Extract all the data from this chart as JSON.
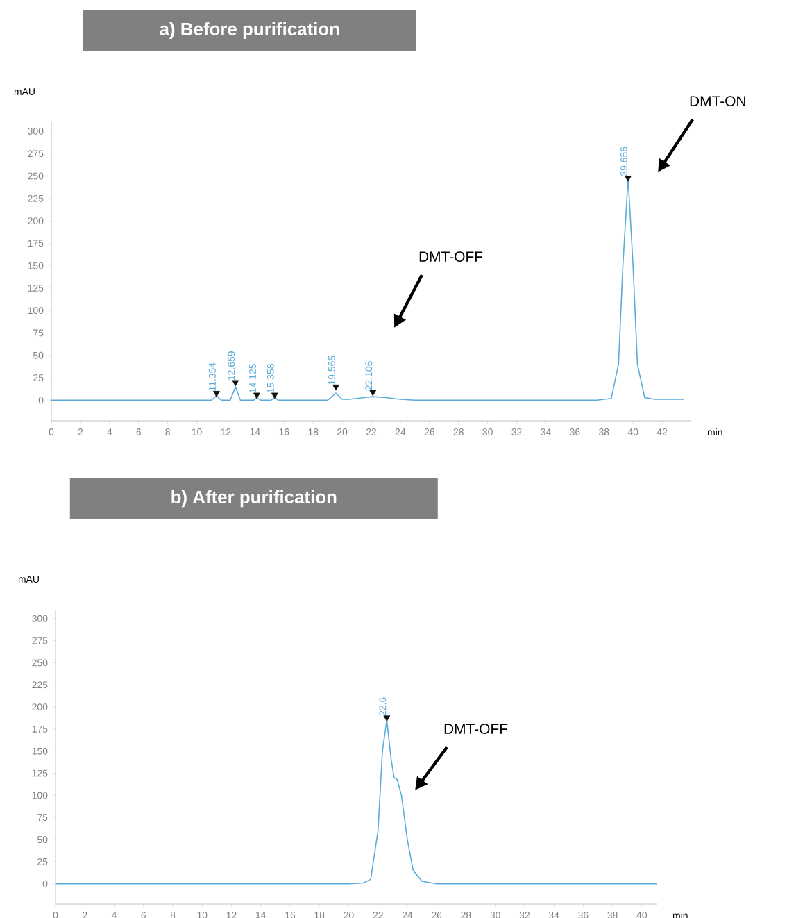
{
  "chart_data": [
    {
      "type": "line",
      "title": "a)  Before purification",
      "xlabel": "min",
      "ylabel": "mAU",
      "xlim": [
        0,
        44
      ],
      "ylim": [
        -23,
        310
      ],
      "xticks": [
        0,
        2,
        4,
        6,
        8,
        10,
        12,
        14,
        16,
        18,
        20,
        22,
        24,
        26,
        28,
        30,
        32,
        34,
        36,
        38,
        40,
        42
      ],
      "yticks": [
        0,
        25,
        50,
        75,
        100,
        125,
        150,
        175,
        200,
        225,
        250,
        275,
        300
      ],
      "grid": false,
      "series": [
        {
          "color": "#5aaadc",
          "marker": "none",
          "x": [
            0,
            11.0,
            11.35,
            11.7,
            12.3,
            12.66,
            13.0,
            13.9,
            14.13,
            14.4,
            15.1,
            15.36,
            15.6,
            19.0,
            19.56,
            20.0,
            20.5,
            21.5,
            22.1,
            23,
            24,
            25,
            37.5,
            38.5,
            39,
            39.3,
            39.66,
            40.0,
            40.3,
            40.8,
            41.5,
            43.5
          ],
          "values": [
            0,
            0,
            5,
            0,
            0,
            15,
            0,
            0,
            3,
            0,
            0,
            3,
            0,
            0,
            8,
            1,
            1,
            3,
            4,
            3,
            1,
            0,
            0,
            2,
            40,
            150,
            248,
            150,
            40,
            3,
            1,
            1
          ]
        },
        {
          "type": "scatter",
          "color": "#111111",
          "marker": "triangle",
          "x": [
            11.354,
            12.659,
            14.125,
            15.358,
            19.565,
            22.106,
            39.656
          ],
          "values": [
            8,
            20,
            6,
            6,
            15,
            9,
            248
          ]
        }
      ],
      "annotations": [
        {
          "text": "11.354",
          "x": 11.354,
          "y": 8
        },
        {
          "text": "12.659",
          "x": 12.659,
          "y": 20
        },
        {
          "text": "14.125",
          "x": 14.125,
          "y": 6
        },
        {
          "text": "15.358",
          "x": 15.358,
          "y": 6
        },
        {
          "text": "19.565",
          "x": 19.565,
          "y": 15
        },
        {
          "text": "22.106",
          "x": 22.106,
          "y": 9
        },
        {
          "text": "39.656",
          "x": 39.656,
          "y": 248
        },
        "DMT-OFF",
        "DMT-ON"
      ]
    },
    {
      "type": "line",
      "title": "b) After purification",
      "xlabel": "min",
      "ylabel": "mAU",
      "xlim": [
        0,
        41
      ],
      "ylim": [
        -23,
        310
      ],
      "xticks": [
        0,
        2,
        4,
        6,
        8,
        10,
        12,
        14,
        16,
        18,
        20,
        22,
        24,
        26,
        28,
        30,
        32,
        34,
        36,
        38,
        40
      ],
      "yticks": [
        0,
        25,
        50,
        75,
        100,
        125,
        150,
        175,
        200,
        225,
        250,
        275,
        300
      ],
      "grid": false,
      "series": [
        {
          "color": "#5aaadc",
          "marker": "none",
          "x": [
            0,
            20,
            21,
            21.5,
            22,
            22.3,
            22.6,
            22.9,
            23.1,
            23.3,
            23.6,
            24,
            24.4,
            25,
            26,
            41
          ],
          "values": [
            0,
            0,
            1,
            5,
            60,
            150,
            185,
            140,
            120,
            118,
            100,
            50,
            15,
            3,
            0,
            0
          ]
        },
        {
          "type": "scatter",
          "color": "#111111",
          "marker": "triangle",
          "x": [
            22.6
          ],
          "values": [
            188
          ]
        }
      ],
      "annotations": [
        {
          "text": "22.6",
          "x": 22.6,
          "y": 188
        },
        "DMT-OFF"
      ]
    }
  ]
}
